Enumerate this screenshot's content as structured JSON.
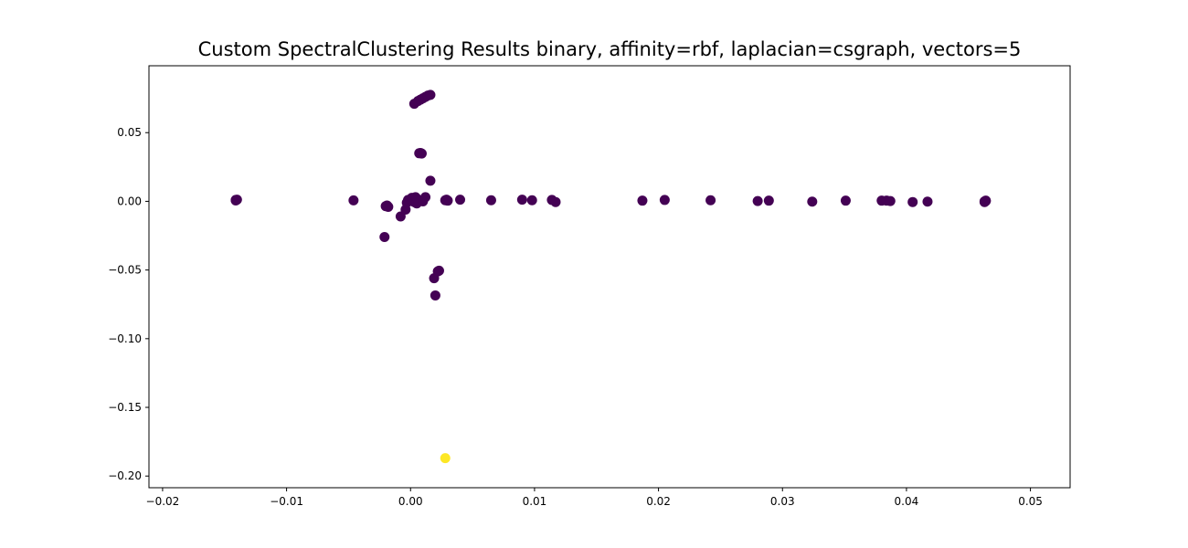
{
  "chart_data": {
    "type": "scatter",
    "title": "Custom SpectralClustering Results binary, affinity=rbf, laplacian=csgraph, vectors=5",
    "xlabel": "",
    "ylabel": "",
    "xlim": [
      -0.0211,
      0.0532
    ],
    "ylim": [
      -0.2085,
      0.0987
    ],
    "x_ticks": [
      {
        "value": -0.02,
        "label": "−0.02"
      },
      {
        "value": -0.01,
        "label": "−0.01"
      },
      {
        "value": 0.0,
        "label": "0.00"
      },
      {
        "value": 0.01,
        "label": "0.01"
      },
      {
        "value": 0.02,
        "label": "0.02"
      },
      {
        "value": 0.03,
        "label": "0.03"
      },
      {
        "value": 0.04,
        "label": "0.04"
      },
      {
        "value": 0.05,
        "label": "0.05"
      }
    ],
    "y_ticks": [
      {
        "value": 0.05,
        "label": "0.05"
      },
      {
        "value": 0.0,
        "label": "0.00"
      },
      {
        "value": -0.05,
        "label": "−0.05"
      },
      {
        "value": -0.1,
        "label": "−0.10"
      },
      {
        "value": -0.15,
        "label": "−0.15"
      },
      {
        "value": -0.2,
        "label": "−0.20"
      }
    ],
    "grid": false,
    "series": [
      {
        "cluster": 0,
        "color": "#440154",
        "points": [
          [
            -0.0141,
            0.001
          ],
          [
            -0.0141,
            0.0006
          ],
          [
            -0.014,
            0.0012
          ],
          [
            -0.0046,
            0.0007
          ],
          [
            -0.0019,
            -0.003
          ],
          [
            -0.0018,
            -0.004
          ],
          [
            -0.002,
            -0.0035
          ],
          [
            -0.0021,
            -0.026
          ],
          [
            -0.0008,
            -0.011
          ],
          [
            -0.0004,
            -0.006
          ],
          [
            -0.0003,
            -0.001
          ],
          [
            -0.0002,
            0.001
          ],
          [
            0.0,
            0.0015
          ],
          [
            0.0001,
            0.0025
          ],
          [
            0.0002,
            0.0005
          ],
          [
            0.0003,
            -0.0005
          ],
          [
            0.0004,
            0.003
          ],
          [
            0.0005,
            0.002
          ],
          [
            0.0005,
            -0.0015
          ],
          [
            0.0006,
            0.001
          ],
          [
            0.001,
            0.0
          ],
          [
            0.0012,
            0.003
          ],
          [
            0.0016,
            0.015
          ],
          [
            0.0007,
            0.035
          ],
          [
            0.0008,
            0.0352
          ],
          [
            0.0009,
            0.0348
          ],
          [
            0.0003,
            0.071
          ],
          [
            0.0006,
            0.073
          ],
          [
            0.0008,
            0.074
          ],
          [
            0.001,
            0.075
          ],
          [
            0.0012,
            0.076
          ],
          [
            0.0014,
            0.077
          ],
          [
            0.0016,
            0.0775
          ],
          [
            0.0019,
            -0.056
          ],
          [
            0.002,
            -0.0685
          ],
          [
            0.0022,
            -0.051
          ],
          [
            0.0023,
            -0.0505
          ],
          [
            0.0028,
            0.0008
          ],
          [
            0.0029,
            0.0012
          ],
          [
            0.003,
            0.0005
          ],
          [
            0.004,
            0.0012
          ],
          [
            0.0065,
            0.0008
          ],
          [
            0.009,
            0.0012
          ],
          [
            0.0098,
            0.0008
          ],
          [
            0.0114,
            0.001
          ],
          [
            0.0117,
            -0.0005
          ],
          [
            0.0187,
            0.0005
          ],
          [
            0.0205,
            0.001
          ],
          [
            0.0242,
            0.0008
          ],
          [
            0.028,
            0.0002
          ],
          [
            0.0289,
            0.0005
          ],
          [
            0.0324,
            -0.0002
          ],
          [
            0.0351,
            0.0005
          ],
          [
            0.038,
            0.0005
          ],
          [
            0.0384,
            0.0005
          ],
          [
            0.0387,
            0.0002
          ],
          [
            0.0405,
            -0.0005
          ],
          [
            0.0417,
            -0.0002
          ],
          [
            0.0463,
            0.0
          ],
          [
            0.0464,
            0.0005
          ],
          [
            0.0463,
            -0.0005
          ],
          [
            0.0464,
            0.0002
          ]
        ]
      },
      {
        "cluster": 1,
        "color": "#fde725",
        "points": [
          [
            0.0028,
            -0.187
          ]
        ]
      }
    ]
  }
}
